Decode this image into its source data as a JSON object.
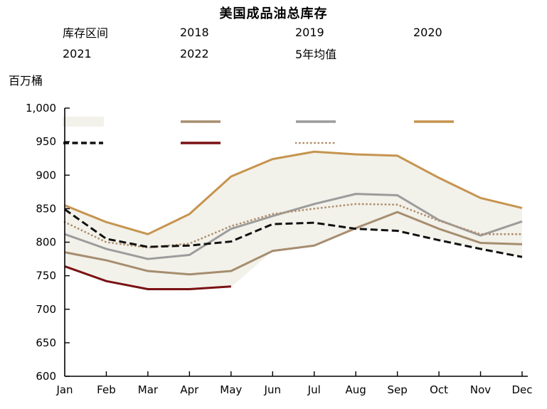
{
  "title": "美国成品油总库存",
  "unit_label": "百万桶",
  "chart_data": {
    "type": "line",
    "title": "美国成品油总库存",
    "ylabel": "百万桶",
    "x_categories": [
      "Jan",
      "Feb",
      "Mar",
      "Apr",
      "May",
      "Jun",
      "Jul",
      "Aug",
      "Sep",
      "Oct",
      "Nov",
      "Dec"
    ],
    "ylim": [
      600,
      1000
    ],
    "ytick_interval": 50,
    "ytick_labels": [
      "1,000",
      "950",
      "900",
      "850",
      "800",
      "750",
      "700",
      "650",
      "600"
    ],
    "grid": false,
    "legend_position": "top",
    "legend_rows": [
      [
        "库存区间",
        "2018",
        "2019",
        "2020"
      ],
      [
        "2021",
        "2022",
        "5年均值"
      ]
    ],
    "band": {
      "name": "库存区间",
      "fill": "#F2F1EA",
      "top": [
        855,
        830,
        812,
        842,
        898,
        924,
        935,
        931,
        929,
        896,
        866,
        851
      ],
      "bottom": [
        762,
        740,
        728,
        728,
        733,
        787,
        795,
        818,
        817,
        803,
        790,
        778
      ]
    },
    "series": [
      {
        "name": "2018",
        "color": "#A68D6F",
        "dash": "solid",
        "values": [
          785,
          773,
          757,
          752,
          757,
          787,
          795,
          821,
          845,
          820,
          799,
          797
        ]
      },
      {
        "name": "2019",
        "color": "#9C9C9C",
        "dash": "solid",
        "values": [
          812,
          790,
          775,
          781,
          820,
          839,
          857,
          872,
          870,
          833,
          810,
          831
        ]
      },
      {
        "name": "2020",
        "color": "#C6944E",
        "dash": "solid",
        "values": [
          855,
          830,
          812,
          842,
          898,
          924,
          935,
          931,
          929,
          896,
          866,
          851
        ]
      },
      {
        "name": "5年均值",
        "color": "#B18F6C",
        "dash": "dotted",
        "values": [
          830,
          800,
          792,
          798,
          824,
          842,
          850,
          857,
          856,
          832,
          812,
          812
        ]
      },
      {
        "name": "2021",
        "color": "#111111",
        "dash": "dashed",
        "values": [
          849,
          805,
          793,
          795,
          801,
          827,
          829,
          820,
          817,
          803,
          790,
          778
        ]
      },
      {
        "name": "2022",
        "color": "#7A1113",
        "dash": "solid",
        "values": [
          764,
          742,
          730,
          730,
          734,
          null,
          null,
          null,
          null,
          null,
          null,
          null
        ]
      }
    ]
  }
}
